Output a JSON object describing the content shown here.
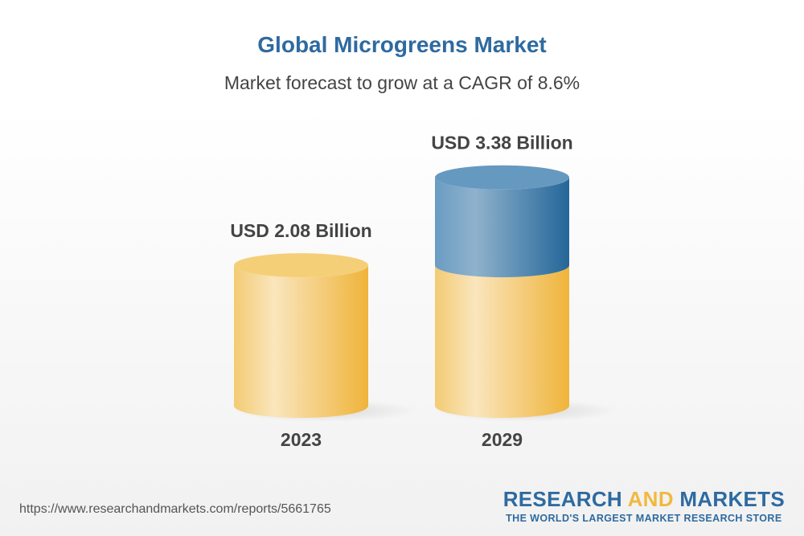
{
  "header": {
    "title": "Global Microgreens Market",
    "subtitle": "Market forecast to grow at a CAGR of 8.6%"
  },
  "chart_data": {
    "type": "bar",
    "style": "3d-cylinder",
    "categories": [
      "2023",
      "2029"
    ],
    "values": [
      2.08,
      3.38
    ],
    "data_labels": [
      "USD 2.08 Billion",
      "USD 3.38 Billion"
    ],
    "unit": "USD Billion",
    "colors": {
      "base": "#f2c25a",
      "growth": "#3a78aa"
    },
    "grid": false
  },
  "footer": {
    "url": "https://www.researchandmarkets.com/reports/5661765",
    "logo_part1": "RESEARCH ",
    "logo_part2": "AND",
    "logo_part3": " MARKETS",
    "tagline": "THE WORLD'S LARGEST MARKET RESEARCH STORE"
  }
}
